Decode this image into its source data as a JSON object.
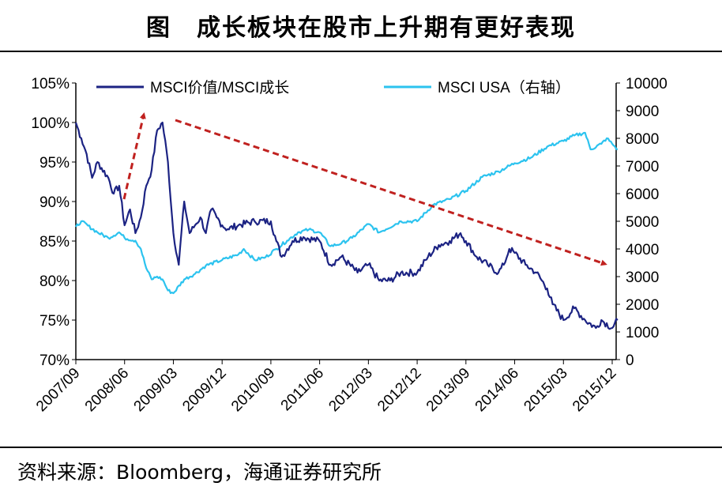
{
  "title": "图　成长板块在股市上升期有更好表现",
  "source": "资料来源：Bloomberg，海通证券研究所",
  "colors": {
    "value_growth": "#1c2383",
    "msci_usa": "#2cc3ef",
    "arrow": "#c0211f"
  },
  "chart_data": {
    "type": "line",
    "title": "成长板块在股市上升期有更好表现",
    "x_start": "2007/09",
    "x_tick_labels": [
      "2007/09",
      "2008/06",
      "2009/03",
      "2009/12",
      "2010/09",
      "2011/06",
      "2012/03",
      "2012/12",
      "2013/09",
      "2014/06",
      "2015/03",
      "2015/12"
    ],
    "left_axis": {
      "ticks": [
        "70%",
        "75%",
        "80%",
        "85%",
        "90%",
        "95%",
        "100%",
        "105%"
      ],
      "range": [
        70,
        105
      ]
    },
    "right_axis": {
      "ticks": [
        "0",
        "1000",
        "2000",
        "3000",
        "4000",
        "5000",
        "6000",
        "7000",
        "8000",
        "9000",
        "10000"
      ],
      "range": [
        0,
        10000
      ]
    },
    "legend": [
      "MSCI价值/MSCI成长",
      "MSCI USA（右轴）"
    ],
    "series": [
      {
        "name": "MSCI价值/MSCI成长",
        "axis": "left",
        "points": [
          [
            0,
            100
          ],
          [
            1,
            98
          ],
          [
            2,
            96
          ],
          [
            3,
            93
          ],
          [
            4,
            95
          ],
          [
            6,
            93
          ],
          [
            7,
            91
          ],
          [
            8,
            92
          ],
          [
            9,
            87
          ],
          [
            10,
            89
          ],
          [
            11,
            86
          ],
          [
            12,
            88
          ],
          [
            13,
            92
          ],
          [
            14,
            94
          ],
          [
            15,
            99
          ],
          [
            16,
            100
          ],
          [
            17,
            95
          ],
          [
            18,
            86
          ],
          [
            19,
            82
          ],
          [
            20,
            90
          ],
          [
            21,
            86
          ],
          [
            22,
            87
          ],
          [
            23,
            88
          ],
          [
            24,
            86
          ],
          [
            25,
            89
          ],
          [
            26,
            88
          ],
          [
            27,
            87
          ],
          [
            28,
            86.5
          ],
          [
            30,
            87
          ],
          [
            33,
            87.5
          ],
          [
            36,
            87.5
          ],
          [
            37,
            85
          ],
          [
            38,
            83
          ],
          [
            40,
            85
          ],
          [
            42,
            85.5
          ],
          [
            45,
            85
          ],
          [
            47,
            82
          ],
          [
            49,
            83
          ],
          [
            52,
            81
          ],
          [
            54,
            82
          ],
          [
            56,
            80
          ],
          [
            58,
            80
          ],
          [
            60,
            81
          ],
          [
            63,
            81
          ],
          [
            65,
            83
          ],
          [
            67,
            84.5
          ],
          [
            69,
            85
          ],
          [
            71,
            86
          ],
          [
            72,
            85
          ],
          [
            74,
            83
          ],
          [
            76,
            82
          ],
          [
            78,
            81
          ],
          [
            79,
            82
          ],
          [
            80,
            84
          ],
          [
            81,
            83.5
          ],
          [
            83,
            82
          ],
          [
            85,
            81
          ],
          [
            87,
            79
          ],
          [
            88,
            77
          ],
          [
            90,
            75
          ],
          [
            92,
            76.5
          ],
          [
            94,
            75
          ],
          [
            96,
            74
          ],
          [
            97,
            75
          ],
          [
            99,
            74
          ],
          [
            100,
            75
          ]
        ]
      },
      {
        "name": "MSCI USA（右轴）",
        "axis": "right",
        "points": [
          [
            0,
            4800
          ],
          [
            1,
            5000
          ],
          [
            4,
            4600
          ],
          [
            6,
            4400
          ],
          [
            8,
            4600
          ],
          [
            9,
            4400
          ],
          [
            11,
            4300
          ],
          [
            12,
            4000
          ],
          [
            13,
            3300
          ],
          [
            14,
            2900
          ],
          [
            15,
            3000
          ],
          [
            16,
            2900
          ],
          [
            17,
            2500
          ],
          [
            18,
            2400
          ],
          [
            20,
            2900
          ],
          [
            22,
            3100
          ],
          [
            24,
            3400
          ],
          [
            27,
            3600
          ],
          [
            30,
            3800
          ],
          [
            31,
            4000
          ],
          [
            33,
            3600
          ],
          [
            35,
            3700
          ],
          [
            37,
            4000
          ],
          [
            39,
            4300
          ],
          [
            41,
            4600
          ],
          [
            43,
            4700
          ],
          [
            45,
            4600
          ],
          [
            47,
            4100
          ],
          [
            49,
            4200
          ],
          [
            51,
            4400
          ],
          [
            54,
            4900
          ],
          [
            56,
            4600
          ],
          [
            60,
            5000
          ],
          [
            63,
            5000
          ],
          [
            66,
            5600
          ],
          [
            69,
            5800
          ],
          [
            72,
            6100
          ],
          [
            75,
            6600
          ],
          [
            78,
            6800
          ],
          [
            81,
            7100
          ],
          [
            84,
            7300
          ],
          [
            87,
            7700
          ],
          [
            90,
            7900
          ],
          [
            92,
            8100
          ],
          [
            94,
            8200
          ],
          [
            95,
            7600
          ],
          [
            97,
            7800
          ],
          [
            98,
            8000
          ],
          [
            99,
            7800
          ],
          [
            100,
            7600
          ]
        ]
      }
    ],
    "annotations": [
      "red dashed up arrow during 2008 rally",
      "red dashed down arrow from 2009 to 2015/12"
    ]
  }
}
